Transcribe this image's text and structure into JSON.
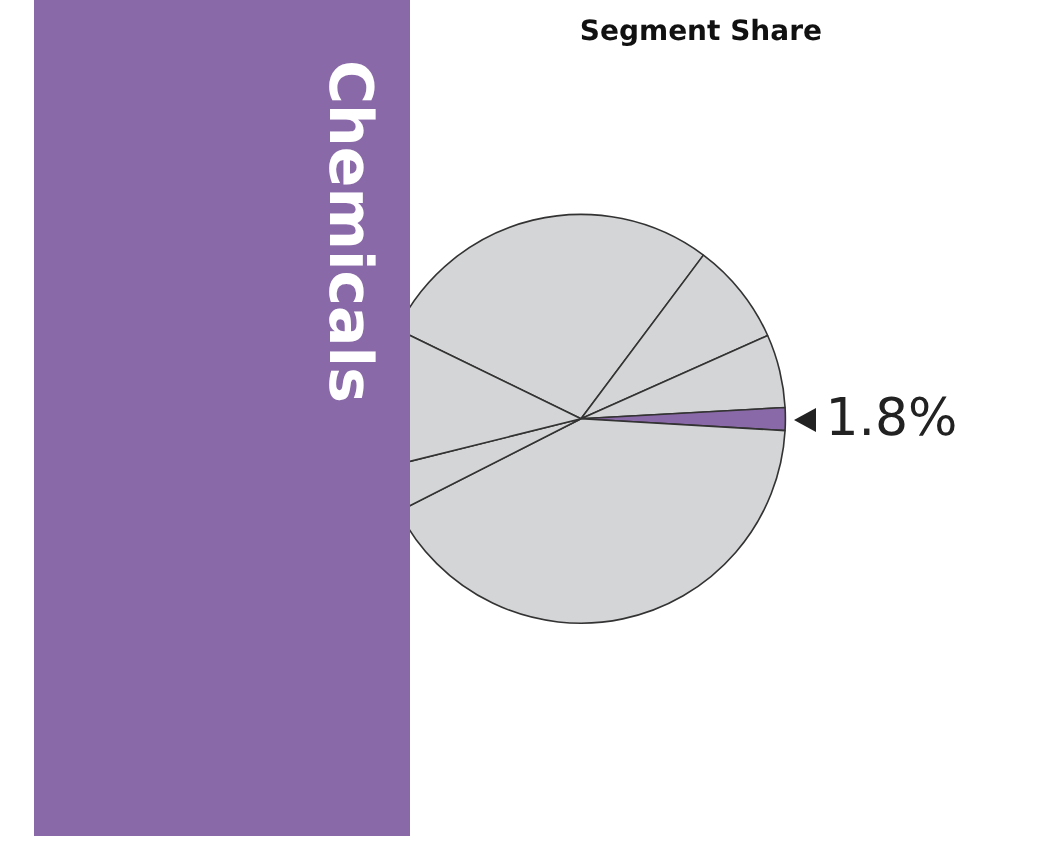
{
  "chart_data": {
    "type": "pie",
    "title": "Segment Share",
    "annotations": [
      "Chemicals"
    ],
    "categories": [
      null,
      null,
      null,
      null,
      null,
      null,
      null
    ],
    "values": [
      28,
      8.1,
      5.8,
      1.8,
      41.6,
      3.6,
      11.1
    ],
    "colors": [
      "#d4d5d6",
      "#d4d5d6",
      "#d4d5d6",
      "#8a69a8",
      "#d4d5d6",
      "#d4d5d6",
      "#d4d5d6"
    ],
    "value_labels": [
      null,
      null,
      null,
      "1.8%",
      null,
      null,
      null
    ],
    "legend": false
  }
}
